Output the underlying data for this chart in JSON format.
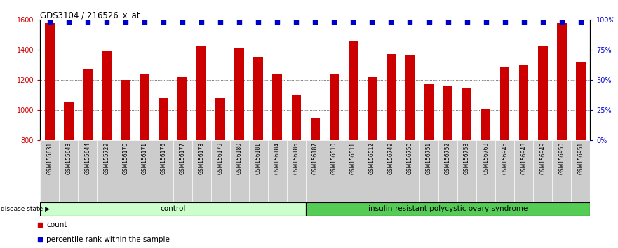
{
  "title": "GDS3104 / 216526_x_at",
  "samples": [
    "GSM155631",
    "GSM155643",
    "GSM155644",
    "GSM155729",
    "GSM156170",
    "GSM156171",
    "GSM156176",
    "GSM156177",
    "GSM156178",
    "GSM156179",
    "GSM156180",
    "GSM156181",
    "GSM156184",
    "GSM156186",
    "GSM156187",
    "GSM156510",
    "GSM156511",
    "GSM156512",
    "GSM156749",
    "GSM156750",
    "GSM156751",
    "GSM156752",
    "GSM156753",
    "GSM156763",
    "GSM156946",
    "GSM156948",
    "GSM156949",
    "GSM156950",
    "GSM156951"
  ],
  "counts": [
    1580,
    1055,
    1270,
    1390,
    1200,
    1240,
    1080,
    1220,
    1430,
    1080,
    1410,
    1355,
    1245,
    1105,
    945,
    1245,
    1455,
    1220,
    1375,
    1370,
    1175,
    1160,
    1150,
    1005,
    1290,
    1300,
    1430,
    1580,
    1315
  ],
  "n_control": 14,
  "control_label": "control",
  "disease_label": "insulin-resistant polycystic ovary syndrome",
  "disease_state_label": "disease state",
  "bar_color": "#CC0000",
  "percentile_color": "#0000CC",
  "ymin": 800,
  "ymax": 1600,
  "yticks": [
    800,
    1000,
    1200,
    1400,
    1600
  ],
  "right_yticks": [
    0,
    25,
    50,
    75,
    100
  ],
  "right_yticklabels": [
    "0%",
    "25%",
    "50%",
    "75%",
    "100%"
  ],
  "grid_values": [
    1000,
    1200,
    1400
  ],
  "control_bg": "#ccffcc",
  "disease_bg": "#55cc55",
  "tick_bg": "#cccccc"
}
